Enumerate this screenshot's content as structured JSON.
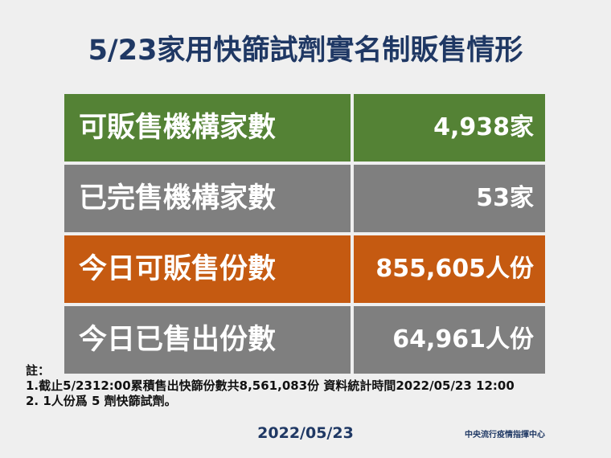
{
  "header": {
    "title": "5/23家用快篩試劑實名制販售情形"
  },
  "table": {
    "rows": [
      [
        "可販售機構家數",
        "4,938家"
      ],
      [
        "已完售機構家數",
        "53家"
      ],
      [
        "今日可販售份數",
        "855,605人份"
      ],
      [
        "今日已售出份數",
        "64,961人份"
      ]
    ]
  },
  "notes": {
    "heading": "註：",
    "lines": [
      "1.截止5/2312:00累積售出快篩份數共8,561,083份 資料統計時間2022/05/23 12:00",
      "2. 1人份爲 5 劑快篩試劑。"
    ]
  },
  "footer": {
    "date": "2022/05/23",
    "source": "中央流行疫情指揮中心"
  }
}
